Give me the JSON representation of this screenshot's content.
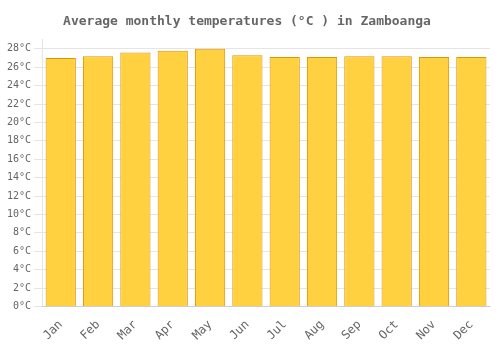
{
  "chart_data": {
    "type": "bar",
    "title": "Average monthly temperatures (°C ) in Zamboanga",
    "categories": [
      "Jan",
      "Feb",
      "Mar",
      "Apr",
      "May",
      "Jun",
      "Jul",
      "Aug",
      "Sep",
      "Oct",
      "Nov",
      "Dec"
    ],
    "values": [
      27.0,
      27.2,
      27.6,
      27.8,
      28.0,
      27.3,
      27.1,
      27.1,
      27.2,
      27.2,
      27.1,
      27.1
    ],
    "color": "#FFD040",
    "ylim": [
      0,
      29
    ],
    "yticks": [
      {
        "value": 0,
        "label": "0°C"
      },
      {
        "value": 2,
        "label": "2°C"
      },
      {
        "value": 4,
        "label": "4°C"
      },
      {
        "value": 6,
        "label": "6°C"
      },
      {
        "value": 8,
        "label": "8°C"
      },
      {
        "value": 10,
        "label": "10°C"
      },
      {
        "value": 12,
        "label": "12°C"
      },
      {
        "value": 14,
        "label": "14°C"
      },
      {
        "value": 16,
        "label": "16°C"
      },
      {
        "value": 18,
        "label": "18°C"
      },
      {
        "value": 20,
        "label": "20°C"
      },
      {
        "value": 22,
        "label": "22°C"
      },
      {
        "value": 24,
        "label": "24°C"
      },
      {
        "value": 26,
        "label": "26°C"
      },
      {
        "value": 28,
        "label": "28°C"
      }
    ],
    "grid": true
  }
}
